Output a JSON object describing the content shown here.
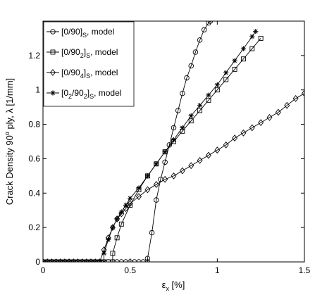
{
  "chart_data": {
    "type": "line",
    "title": "",
    "xlabel": "εx [%]",
    "ylabel": "Crack Density 90° ply, λ [1/mm]",
    "xlim": [
      0,
      1.5
    ],
    "ylim": [
      0,
      1.4
    ],
    "x_ticks": [
      "0",
      "0.5",
      "1",
      "1.5"
    ],
    "y_ticks": [
      "0",
      "0.2",
      "0.4",
      "0.6",
      "0.8",
      "1",
      "1.2"
    ],
    "grid": false,
    "legend_position": "top-left",
    "series": [
      {
        "name": "[0/90]S, model",
        "name_parts": [
          "[0/90]",
          "S",
          ", model"
        ],
        "marker": "circle",
        "x": [
          0,
          0.025,
          0.05,
          0.075,
          0.1,
          0.125,
          0.15,
          0.175,
          0.2,
          0.225,
          0.25,
          0.275,
          0.3,
          0.325,
          0.35,
          0.375,
          0.4,
          0.425,
          0.45,
          0.475,
          0.5,
          0.525,
          0.55,
          0.575,
          0.6,
          0.6,
          0.625,
          0.65,
          0.675,
          0.7,
          0.725,
          0.75,
          0.775,
          0.8,
          0.825,
          0.85,
          0.875,
          0.9,
          0.925,
          0.95,
          0.96
        ],
        "y": [
          0,
          0,
          0,
          0,
          0,
          0,
          0,
          0,
          0,
          0,
          0,
          0,
          0,
          0,
          0,
          0,
          0,
          0,
          0,
          0,
          0,
          0,
          0,
          0,
          0,
          0.02,
          0.17,
          0.36,
          0.48,
          0.58,
          0.68,
          0.78,
          0.88,
          0.98,
          1.07,
          1.14,
          1.22,
          1.29,
          1.35,
          1.39,
          1.4
        ]
      },
      {
        "name": "[0/902]S, model",
        "name_parts": [
          "[0/90",
          "2",
          "]",
          "S",
          ", model"
        ],
        "marker": "square",
        "x": [
          0,
          0.025,
          0.05,
          0.075,
          0.1,
          0.125,
          0.15,
          0.175,
          0.2,
          0.225,
          0.25,
          0.275,
          0.3,
          0.325,
          0.35,
          0.375,
          0.4,
          0.4,
          0.425,
          0.45,
          0.5,
          0.55,
          0.6,
          0.65,
          0.7,
          0.75,
          0.8,
          0.85,
          0.9,
          0.95,
          1.0,
          1.05,
          1.1,
          1.15,
          1.2,
          1.25
        ],
        "y": [
          0,
          0,
          0,
          0,
          0,
          0,
          0,
          0,
          0,
          0,
          0,
          0,
          0,
          0,
          0,
          0,
          0,
          0.05,
          0.14,
          0.22,
          0.33,
          0.42,
          0.5,
          0.57,
          0.64,
          0.7,
          0.76,
          0.82,
          0.88,
          0.94,
          1.0,
          1.06,
          1.12,
          1.18,
          1.24,
          1.3
        ]
      },
      {
        "name": "[0/904]S, model",
        "name_parts": [
          "[0/90",
          "4",
          "]",
          "S",
          ", model"
        ],
        "marker": "diamond",
        "x": [
          0,
          0.025,
          0.05,
          0.075,
          0.1,
          0.125,
          0.15,
          0.175,
          0.2,
          0.225,
          0.25,
          0.275,
          0.3,
          0.325,
          0.35,
          0.375,
          0.4,
          0.425,
          0.45,
          0.475,
          0.5,
          0.55,
          0.6,
          0.65,
          0.7,
          0.75,
          0.8,
          0.85,
          0.9,
          0.95,
          1.0,
          1.05,
          1.1,
          1.15,
          1.2,
          1.25,
          1.3,
          1.35,
          1.4,
          1.45,
          1.5
        ],
        "y": [
          0,
          0,
          0,
          0,
          0,
          0,
          0,
          0,
          0,
          0,
          0,
          0,
          0,
          0,
          0.07,
          0.14,
          0.2,
          0.25,
          0.28,
          0.31,
          0.34,
          0.38,
          0.42,
          0.45,
          0.48,
          0.5,
          0.53,
          0.56,
          0.59,
          0.62,
          0.65,
          0.68,
          0.72,
          0.75,
          0.78,
          0.81,
          0.84,
          0.87,
          0.91,
          0.95,
          0.98
        ]
      },
      {
        "name": "[02/902]S, model",
        "name_parts": [
          "[0",
          "2",
          "/90",
          "2",
          "]",
          "S",
          ", model"
        ],
        "marker": "star",
        "x": [
          0,
          0.025,
          0.05,
          0.075,
          0.1,
          0.125,
          0.15,
          0.175,
          0.2,
          0.225,
          0.25,
          0.275,
          0.3,
          0.325,
          0.35,
          0.35,
          0.375,
          0.4,
          0.425,
          0.45,
          0.475,
          0.5,
          0.55,
          0.6,
          0.65,
          0.7,
          0.75,
          0.8,
          0.85,
          0.9,
          0.95,
          1.0,
          1.05,
          1.1,
          1.15,
          1.2,
          1.22
        ],
        "y": [
          0,
          0,
          0,
          0,
          0,
          0,
          0,
          0,
          0,
          0,
          0,
          0,
          0,
          0,
          0,
          0.05,
          0.13,
          0.2,
          0.25,
          0.29,
          0.33,
          0.37,
          0.43,
          0.5,
          0.57,
          0.64,
          0.71,
          0.78,
          0.85,
          0.91,
          0.97,
          1.03,
          1.1,
          1.17,
          1.24,
          1.31,
          1.34
        ]
      }
    ]
  }
}
